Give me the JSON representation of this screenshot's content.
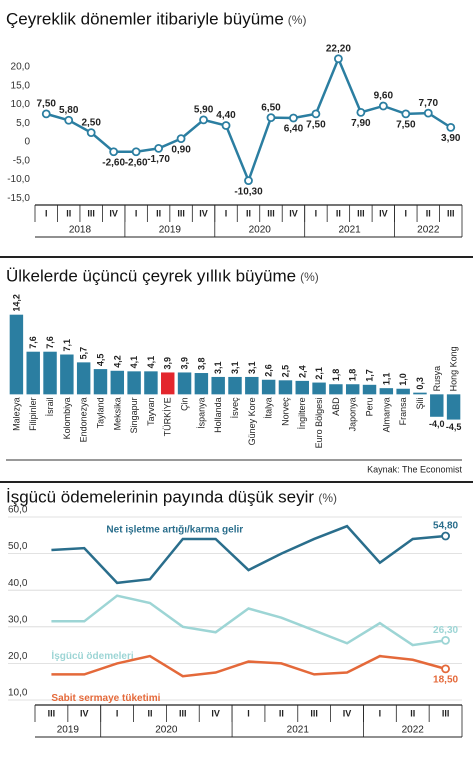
{
  "chart_data": [
    {
      "type": "line",
      "title": "Çeyreklik dönemler itibariyle büyüme",
      "unit": "(%)",
      "categories": [
        "I",
        "II",
        "III",
        "IV",
        "I",
        "II",
        "III",
        "IV",
        "I",
        "II",
        "III",
        "IV",
        "I",
        "II",
        "III",
        "IV",
        "I",
        "II",
        "III"
      ],
      "x_groups": [
        {
          "label": "2018",
          "count": 4
        },
        {
          "label": "2019",
          "count": 4
        },
        {
          "label": "2020",
          "count": 4
        },
        {
          "label": "2021",
          "count": 4
        },
        {
          "label": "2022",
          "count": 3
        }
      ],
      "series": [
        {
          "name": null,
          "color": "#2b7ea1",
          "values": [
            7.5,
            5.8,
            2.5,
            -2.6,
            -2.6,
            -1.7,
            0.9,
            5.9,
            4.4,
            -10.3,
            6.5,
            6.4,
            7.5,
            22.2,
            7.9,
            9.6,
            7.5,
            7.7,
            3.9
          ],
          "value_labels": [
            "7,50",
            "5,80",
            "2,50",
            "-2,60",
            "-2,60",
            "-1,70",
            "0,90",
            "5,90",
            "4,40",
            "-10,30",
            "6,50",
            "6,40",
            "7,50",
            "22,20",
            "7,90",
            "9,60",
            "7,50",
            "7,70",
            "3,90"
          ]
        }
      ],
      "markers": "all",
      "grid": false,
      "ylim": [
        -16,
        24
      ],
      "yticks": [
        {
          "value": 20,
          "label": "20,0"
        },
        {
          "value": 15,
          "label": "15,0"
        },
        {
          "value": 10,
          "label": "10,0"
        },
        {
          "value": 5,
          "label": "5,0"
        },
        0,
        {
          "value": -5,
          "label": "-5,0"
        },
        {
          "value": -10,
          "label": "-10,0"
        },
        {
          "value": -15,
          "label": "-15,0"
        }
      ]
    },
    {
      "type": "bar",
      "title": "Ülkelerde üçüncü çeyrek yıllık büyüme",
      "unit": "(%)",
      "categories": [
        "Malezya",
        "Filipinler",
        "İsrail",
        "Kolombiya",
        "Endonezya",
        "Tayland",
        "Meksika",
        "Singapur",
        "Tayvan",
        "TÜRKİYE",
        "Çin",
        "İspanya",
        "Hollanda",
        "İsveç",
        "Güney Kore",
        "İtalya",
        "Norveç",
        "İngiltere",
        "Euro Bölgesi",
        "ABD",
        "Japonya",
        "Peru",
        "Almanya",
        "Fransa",
        "Şili",
        "Rusya",
        "Hong Kong"
      ],
      "values": [
        14.2,
        7.6,
        7.6,
        7.1,
        5.7,
        4.5,
        4.2,
        4.1,
        4.1,
        3.9,
        3.9,
        3.8,
        3.1,
        3.1,
        3.1,
        2.6,
        2.5,
        2.4,
        2.1,
        1.8,
        1.8,
        1.7,
        1.1,
        1.0,
        0.3,
        -4.0,
        -4.5
      ],
      "value_labels": [
        "14,2",
        "7,6",
        "7,6",
        "7,1",
        "5,7",
        "4,5",
        "4,2",
        "4,1",
        "4,1",
        "3,9",
        "3,9",
        "3,8",
        "3,1",
        "3,1",
        "3,1",
        "2,6",
        "2,5",
        "2,4",
        "2,1",
        "1,8",
        "1,8",
        "1,7",
        "1,1",
        "1,0",
        "0,3",
        "-4,0",
        "-4,5"
      ],
      "colors": [
        "#2b7ea1",
        "#2b7ea1",
        "#2b7ea1",
        "#2b7ea1",
        "#2b7ea1",
        "#2b7ea1",
        "#2b7ea1",
        "#2b7ea1",
        "#2b7ea1",
        "#e3262d",
        "#2b7ea1",
        "#2b7ea1",
        "#2b7ea1",
        "#2b7ea1",
        "#2b7ea1",
        "#2b7ea1",
        "#2b7ea1",
        "#2b7ea1",
        "#2b7ea1",
        "#2b7ea1",
        "#2b7ea1",
        "#2b7ea1",
        "#2b7ea1",
        "#2b7ea1",
        "#2b7ea1",
        "#2b7ea1",
        "#2b7ea1"
      ],
      "ylim": [
        -6,
        14.5
      ],
      "source": "Kaynak: The Economist"
    },
    {
      "type": "line",
      "title": "İşgücü ödemelerinin payında düşük seyir",
      "unit": "(%)",
      "categories": [
        "III",
        "IV",
        "I",
        "II",
        "III",
        "IV",
        "I",
        "II",
        "III",
        "IV",
        "I",
        "II",
        "III"
      ],
      "x_groups": [
        {
          "label": "2019",
          "count": 2
        },
        {
          "label": "2020",
          "count": 4
        },
        {
          "label": "2021",
          "count": 4
        },
        {
          "label": "2022",
          "count": 3
        }
      ],
      "series": [
        {
          "name": "Net işletme artığı/karma gelir",
          "color": "#2a6e8c",
          "values": [
            51,
            51.5,
            42,
            43,
            54,
            54,
            45.5,
            50,
            54,
            57.5,
            47.5,
            54,
            54.8
          ],
          "value_labels": [
            null,
            null,
            null,
            null,
            null,
            null,
            null,
            null,
            null,
            null,
            null,
            null,
            "54,80"
          ]
        },
        {
          "name": "İşgücü ödemeleri",
          "color": "#9dd5d5",
          "values": [
            31.5,
            31.5,
            38.5,
            36.5,
            30,
            28.5,
            35,
            32.5,
            29,
            25.5,
            31,
            25,
            26.3
          ],
          "value_labels": [
            null,
            null,
            null,
            null,
            null,
            null,
            null,
            null,
            null,
            null,
            null,
            null,
            "26,30"
          ]
        },
        {
          "name": "Sabit sermaye tüketimi",
          "color": "#e4693a",
          "values": [
            17,
            17,
            20,
            22,
            16.5,
            17.5,
            20.5,
            20,
            17,
            17.5,
            22,
            21,
            18.5
          ],
          "value_labels": [
            null,
            null,
            null,
            null,
            null,
            null,
            null,
            null,
            null,
            null,
            null,
            null,
            "18,50"
          ]
        }
      ],
      "markers": "last",
      "grid": true,
      "ylim": [
        10,
        60
      ],
      "yticks": [
        {
          "value": 60,
          "label": "60,0"
        },
        {
          "value": 50,
          "label": "50,0"
        },
        {
          "value": 40,
          "label": "40,0"
        },
        {
          "value": 30,
          "label": "30,0"
        },
        {
          "value": 20,
          "label": "20,0"
        },
        {
          "value": 10,
          "label": "10,0"
        }
      ]
    }
  ]
}
